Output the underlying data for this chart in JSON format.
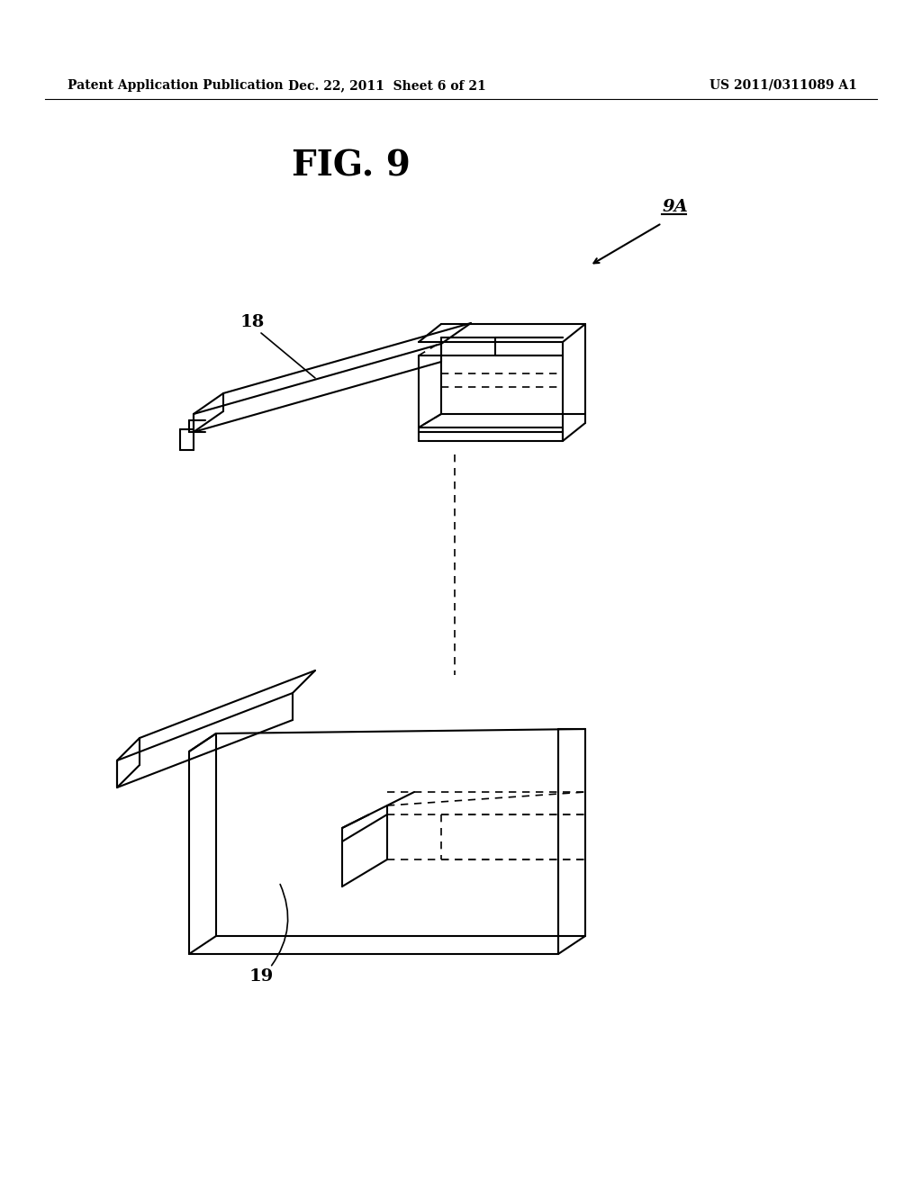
{
  "background_color": "#ffffff",
  "header_left": "Patent Application Publication",
  "header_mid": "Dec. 22, 2011  Sheet 6 of 21",
  "header_right": "US 2011/0311089 A1",
  "fig_title": "FIG. 9",
  "label_9A": "9A",
  "label_18": "18",
  "label_19": "19",
  "line_color": "#000000",
  "dashed_color": "#555555",
  "lw": 1.5,
  "lw_thin": 1.0
}
